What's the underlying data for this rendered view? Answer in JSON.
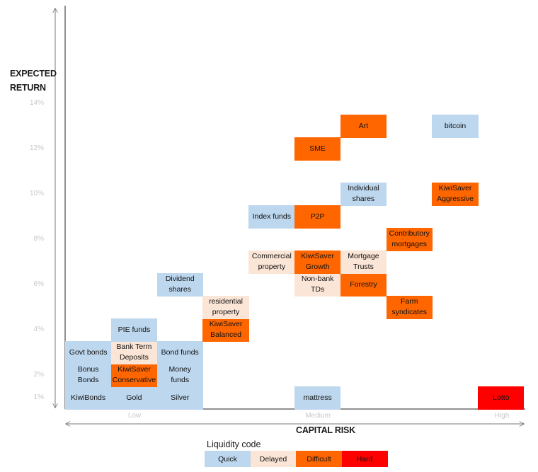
{
  "chart_data": {
    "type": "table",
    "ylabel": "EXPECTED RETURN",
    "xlabel": "CAPITAL RISK",
    "y_ticks": [
      "14%",
      "12%",
      "10%",
      "8%",
      "6%",
      "4%",
      "2%",
      "1%"
    ],
    "x_ticks": [
      "Low",
      "Medium",
      "High"
    ],
    "legend_title": "Liquidity code",
    "liquidity_codes": [
      {
        "name": "Quick",
        "color": "#bdd7ee"
      },
      {
        "name": "Delayed",
        "color": "#fbe5d6"
      },
      {
        "name": "Difficult",
        "color": "#ff6600"
      },
      {
        "name": "Hard",
        "color": "#ff0000"
      }
    ],
    "investments": [
      {
        "label": "KiwiBonds",
        "risk_col": 0,
        "return_row": 0,
        "liquidity": "Quick"
      },
      {
        "label": "Bonus\nBonds",
        "risk_col": 0,
        "return_row": 1,
        "liquidity": "Quick"
      },
      {
        "label": "Govt bonds",
        "risk_col": 0,
        "return_row": 2,
        "liquidity": "Quick"
      },
      {
        "label": "Gold",
        "risk_col": 1,
        "return_row": 0,
        "liquidity": "Quick"
      },
      {
        "label": "KiwiSaver\nConservative",
        "risk_col": 1,
        "return_row": 1,
        "liquidity": "Difficult"
      },
      {
        "label": "Bank Term\nDeposits",
        "risk_col": 1,
        "return_row": 2,
        "liquidity": "Delayed"
      },
      {
        "label": "PIE funds",
        "risk_col": 1,
        "return_row": 3,
        "liquidity": "Quick"
      },
      {
        "label": "Silver",
        "risk_col": 2,
        "return_row": 0,
        "liquidity": "Quick"
      },
      {
        "label": "Money\nfunds",
        "risk_col": 2,
        "return_row": 1,
        "liquidity": "Quick"
      },
      {
        "label": "Bond funds",
        "risk_col": 2,
        "return_row": 2,
        "liquidity": "Quick"
      },
      {
        "label": "Dividend\nshares",
        "risk_col": 2,
        "return_row": 5,
        "liquidity": "Quick"
      },
      {
        "label": "KiwiSaver\nBalanced",
        "risk_col": 3,
        "return_row": 3,
        "liquidity": "Difficult"
      },
      {
        "label": "residential\nproperty",
        "risk_col": 3,
        "return_row": 4,
        "liquidity": "Delayed"
      },
      {
        "label": "Commercial\nproperty",
        "risk_col": 4,
        "return_row": 6,
        "liquidity": "Delayed"
      },
      {
        "label": "Index funds",
        "risk_col": 4,
        "return_row": 8,
        "liquidity": "Quick"
      },
      {
        "label": "mattress",
        "risk_col": 5,
        "return_row": 0,
        "liquidity": "Quick"
      },
      {
        "label": "Non-bank\nTDs",
        "risk_col": 5,
        "return_row": 5,
        "liquidity": "Delayed"
      },
      {
        "label": "KiwiSaver\nGrowth",
        "risk_col": 5,
        "return_row": 6,
        "liquidity": "Difficult"
      },
      {
        "label": "P2P",
        "risk_col": 5,
        "return_row": 8,
        "liquidity": "Difficult"
      },
      {
        "label": "SME",
        "risk_col": 5,
        "return_row": 11,
        "liquidity": "Difficult"
      },
      {
        "label": "Forestry",
        "risk_col": 6,
        "return_row": 5,
        "liquidity": "Difficult"
      },
      {
        "label": "Mortgage\nTrusts",
        "risk_col": 6,
        "return_row": 6,
        "liquidity": "Delayed"
      },
      {
        "label": "Individual\nshares",
        "risk_col": 6,
        "return_row": 9,
        "liquidity": "Quick"
      },
      {
        "label": "Art",
        "risk_col": 6,
        "return_row": 12,
        "liquidity": "Difficult"
      },
      {
        "label": "Farm\nsyndicates",
        "risk_col": 7,
        "return_row": 4,
        "liquidity": "Difficult"
      },
      {
        "label": "Contributory\nmortgages",
        "risk_col": 7,
        "return_row": 7,
        "liquidity": "Difficult"
      },
      {
        "label": "KiwiSaver\nAggressive",
        "risk_col": 8,
        "return_row": 9,
        "liquidity": "Difficult"
      },
      {
        "label": "bitcoin",
        "risk_col": 8,
        "return_row": 12,
        "liquidity": "Quick"
      },
      {
        "label": "Lotto",
        "risk_col": 9,
        "return_row": 0,
        "liquidity": "Hard"
      }
    ]
  }
}
